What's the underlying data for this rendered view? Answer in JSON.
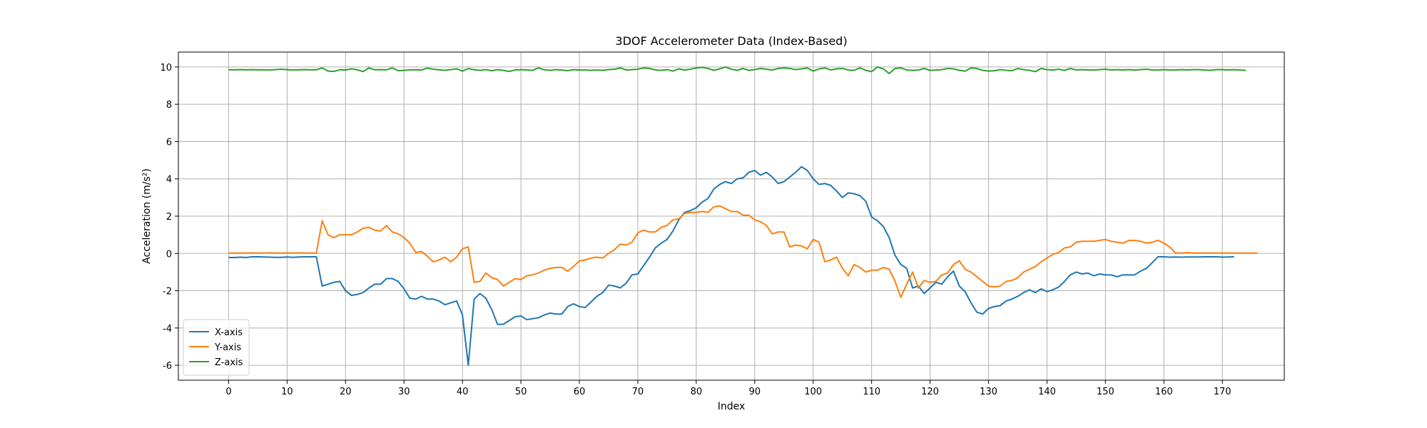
{
  "chart_data": {
    "type": "line",
    "title": "3DOF Accelerometer Data (Index-Based)",
    "xlabel": "Index",
    "ylabel": "Acceleration (m/s²)",
    "xlim": [
      -8.6,
      180.6
    ],
    "ylim": [
      -6.8,
      10.8
    ],
    "xticks": [
      0,
      10,
      20,
      30,
      40,
      50,
      60,
      70,
      80,
      90,
      100,
      110,
      120,
      130,
      140,
      150,
      160,
      170
    ],
    "yticks": [
      -6,
      -4,
      -2,
      0,
      2,
      4,
      6,
      8,
      10
    ],
    "grid": true,
    "legend_position": "lower-left",
    "series": [
      {
        "name": "X-axis",
        "color": "#1f77b4",
        "values": [
          -0.22,
          -0.22,
          -0.2,
          -0.22,
          -0.18,
          -0.18,
          -0.19,
          -0.2,
          -0.21,
          -0.21,
          -0.19,
          -0.21,
          -0.19,
          -0.18,
          -0.18,
          -0.18,
          -1.75,
          -1.65,
          -1.55,
          -1.5,
          -2.0,
          -2.25,
          -2.2,
          -2.1,
          -1.85,
          -1.65,
          -1.65,
          -1.35,
          -1.35,
          -1.5,
          -1.9,
          -2.4,
          -2.45,
          -2.3,
          -2.45,
          -2.45,
          -2.55,
          -2.75,
          -2.65,
          -2.55,
          -3.3,
          -6.0,
          -2.45,
          -2.15,
          -2.4,
          -3.0,
          -3.8,
          -3.8,
          -3.6,
          -3.4,
          -3.35,
          -3.55,
          -3.5,
          -3.45,
          -3.3,
          -3.2,
          -3.25,
          -3.25,
          -2.85,
          -2.7,
          -2.85,
          -2.9,
          -2.6,
          -2.3,
          -2.1,
          -1.7,
          -1.75,
          -1.85,
          -1.6,
          -1.15,
          -1.1,
          -0.65,
          -0.2,
          0.3,
          0.55,
          0.75,
          1.2,
          1.8,
          2.2,
          2.3,
          2.45,
          2.75,
          2.95,
          3.45,
          3.7,
          3.85,
          3.75,
          4.0,
          4.05,
          4.35,
          4.45,
          4.2,
          4.35,
          4.1,
          3.75,
          3.85,
          4.1,
          4.35,
          4.65,
          4.45,
          4.0,
          3.7,
          3.75,
          3.65,
          3.35,
          3.0,
          3.25,
          3.2,
          3.1,
          2.8,
          1.95,
          1.75,
          1.45,
          0.85,
          -0.1,
          -0.6,
          -0.8,
          -1.85,
          -1.75,
          -2.15,
          -1.85,
          -1.55,
          -1.65,
          -1.25,
          -0.95,
          -1.75,
          -2.05,
          -2.65,
          -3.15,
          -3.25,
          -2.95,
          -2.85,
          -2.8,
          -2.55,
          -2.45,
          -2.3,
          -2.1,
          -1.95,
          -2.1,
          -1.9,
          -2.05,
          -1.95,
          -1.8,
          -1.5,
          -1.15,
          -1.0,
          -1.1,
          -1.05,
          -1.2,
          -1.1,
          -1.15,
          -1.15,
          -1.25,
          -1.15,
          -1.15,
          -1.15,
          -0.95,
          -0.8,
          -0.5,
          -0.18,
          -0.18,
          -0.2,
          -0.19,
          -0.2,
          -0.19,
          -0.19,
          -0.19,
          -0.18,
          -0.18,
          -0.18,
          -0.2,
          -0.19,
          -0.18
        ]
      },
      {
        "name": "Y-axis",
        "color": "#ff7f0e",
        "values": [
          0.02,
          0.02,
          0.02,
          0.02,
          0.03,
          0.02,
          0.02,
          0.03,
          0.02,
          0.02,
          0.03,
          0.02,
          0.03,
          0.02,
          0.02,
          0.02,
          1.75,
          1.0,
          0.85,
          1.0,
          1.0,
          1.0,
          1.15,
          1.35,
          1.4,
          1.25,
          1.2,
          1.5,
          1.15,
          1.05,
          0.85,
          0.55,
          0.05,
          0.1,
          -0.15,
          -0.45,
          -0.35,
          -0.2,
          -0.45,
          -0.2,
          0.25,
          0.35,
          -1.55,
          -1.5,
          -1.05,
          -1.3,
          -1.4,
          -1.75,
          -1.55,
          -1.35,
          -1.4,
          -1.2,
          -1.15,
          -1.05,
          -0.9,
          -0.8,
          -0.75,
          -0.75,
          -0.95,
          -0.7,
          -0.4,
          -0.35,
          -0.25,
          -0.2,
          -0.25,
          0.0,
          0.2,
          0.5,
          0.45,
          0.6,
          1.1,
          1.25,
          1.15,
          1.15,
          1.4,
          1.5,
          1.8,
          1.85,
          2.15,
          2.2,
          2.2,
          2.25,
          2.2,
          2.5,
          2.55,
          2.4,
          2.25,
          2.25,
          2.05,
          2.05,
          1.8,
          1.7,
          1.5,
          1.05,
          1.15,
          1.15,
          0.35,
          0.45,
          0.4,
          0.25,
          0.75,
          0.6,
          -0.45,
          -0.35,
          -0.2,
          -0.8,
          -1.2,
          -0.6,
          -0.75,
          -1.0,
          -0.9,
          -0.9,
          -0.75,
          -0.85,
          -1.5,
          -2.35,
          -1.65,
          -1.0,
          -1.85,
          -1.45,
          -1.55,
          -1.5,
          -1.15,
          -1.05,
          -0.6,
          -0.4,
          -0.85,
          -1.0,
          -1.25,
          -1.5,
          -1.75,
          -1.8,
          -1.75,
          -1.5,
          -1.45,
          -1.3,
          -1.0,
          -0.85,
          -0.7,
          -0.45,
          -0.25,
          -0.05,
          0.05,
          0.3,
          0.35,
          0.6,
          0.65,
          0.65,
          0.65,
          0.7,
          0.75,
          0.65,
          0.6,
          0.55,
          0.7,
          0.7,
          0.65,
          0.55,
          0.6,
          0.7,
          0.55,
          0.35,
          0.02,
          0.02,
          0.05,
          0.02,
          0.02,
          0.02,
          0.02,
          0.02,
          0.02,
          0.02,
          0.02,
          0.02,
          0.02,
          0.02,
          0.02
        ]
      },
      {
        "name": "Z-axis",
        "color": "#2ca02c",
        "values": [
          9.85,
          9.85,
          9.86,
          9.85,
          9.86,
          9.85,
          9.85,
          9.84,
          9.86,
          9.88,
          9.86,
          9.84,
          9.85,
          9.86,
          9.85,
          9.85,
          9.95,
          9.78,
          9.76,
          9.85,
          9.84,
          9.9,
          9.85,
          9.75,
          9.95,
          9.85,
          9.86,
          9.85,
          9.95,
          9.8,
          9.82,
          9.85,
          9.85,
          9.84,
          9.94,
          9.88,
          9.85,
          9.82,
          9.86,
          9.9,
          9.78,
          9.92,
          9.85,
          9.82,
          9.86,
          9.8,
          9.86,
          9.82,
          9.76,
          9.84,
          9.86,
          9.84,
          9.82,
          9.95,
          9.85,
          9.82,
          9.86,
          9.84,
          9.8,
          9.86,
          9.84,
          9.84,
          9.82,
          9.84,
          9.82,
          9.86,
          9.88,
          9.95,
          9.84,
          9.86,
          9.88,
          9.95,
          9.92,
          9.84,
          9.82,
          9.86,
          9.78,
          9.9,
          9.84,
          9.88,
          9.95,
          9.98,
          9.92,
          9.82,
          9.9,
          10.0,
          9.88,
          9.82,
          9.92,
          9.82,
          9.86,
          9.92,
          9.88,
          9.84,
          9.92,
          9.95,
          9.92,
          9.86,
          9.9,
          9.95,
          9.78,
          9.9,
          9.95,
          9.84,
          9.9,
          9.92,
          9.84,
          9.82,
          9.95,
          9.82,
          9.75,
          10.0,
          9.9,
          9.65,
          9.92,
          9.95,
          9.84,
          9.82,
          9.84,
          9.92,
          9.82,
          9.84,
          9.86,
          9.92,
          9.9,
          9.82,
          9.78,
          9.95,
          9.92,
          9.82,
          9.78,
          9.8,
          9.86,
          9.82,
          9.8,
          9.92,
          9.86,
          9.82,
          9.75,
          9.92,
          9.86,
          9.84,
          9.88,
          9.82,
          9.92,
          9.84,
          9.86,
          9.84,
          9.84,
          9.86,
          9.88,
          9.84,
          9.86,
          9.84,
          9.86,
          9.84,
          9.86,
          9.88,
          9.84,
          9.84,
          9.86,
          9.84,
          9.84,
          9.86,
          9.84,
          9.86,
          9.86,
          9.84,
          9.82,
          9.86,
          9.86,
          9.84,
          9.86,
          9.84,
          9.82
        ]
      }
    ]
  }
}
